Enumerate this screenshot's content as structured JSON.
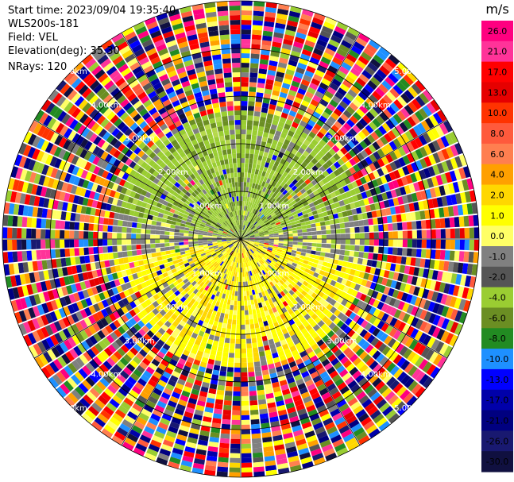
{
  "header": {
    "start_time": "Start time: 2023/09/04 19:35:40",
    "site": "WLS200s-181",
    "field": "Field: VEL",
    "elevation": "Elevation(deg): 35.30",
    "nrays": "NRays: 120"
  },
  "chart_data": {
    "type": "heatmap",
    "projection": "polar-ppi",
    "field": "VEL",
    "units": "m/s",
    "nrays": 120,
    "max_range_km": 5.0,
    "range_rings_km": [
      1,
      2,
      3,
      4,
      5
    ],
    "range_ring_labels": [
      "1.00km",
      "2.00km",
      "3.00km",
      "4.00km",
      "5.00km"
    ],
    "radial_spokes_deg": [
      0,
      30,
      60,
      90,
      120,
      150,
      180,
      210,
      240,
      270,
      300,
      330
    ],
    "valid_data_inner_range_km": 2.8,
    "pattern": "coherent velocity field inside ~2.8 km (northern half approaching at about -2 to -4 m/s, southern half receding at about 2 to 4 m/s, near-zero band along east-west), noise/clutter at larger ranges",
    "colorbar": {
      "unit_label": "m/s",
      "tick_labels": [
        "26.0",
        "21.0",
        "17.0",
        "13.0",
        "10.0",
        "8.0",
        "6.0",
        "4.0",
        "2.0",
        "1.0",
        "0.0",
        "-1.0",
        "-2.0",
        "-4.0",
        "-6.0",
        "-8.0",
        "-10.0",
        "-13.0",
        "-17.0",
        "-21.0",
        "-26.0",
        "-30.0"
      ],
      "colors": [
        "#ff0080",
        "#ff3399",
        "#ff0000",
        "#e60000",
        "#ff3300",
        "#ff5a3c",
        "#ff7f50",
        "#ffa000",
        "#ffd700",
        "#ffff00",
        "#ffff66",
        "#808080",
        "#555555",
        "#9acd32",
        "#6b8e23",
        "#228b22",
        "#1e90ff",
        "#0000ff",
        "#0000aa",
        "#000080",
        "#191970",
        "#101040"
      ]
    }
  }
}
